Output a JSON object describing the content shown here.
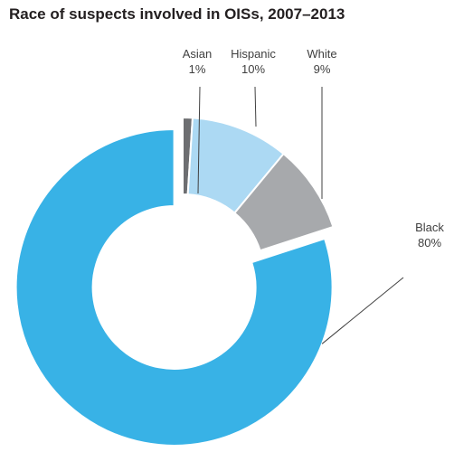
{
  "chart_data": {
    "type": "pie",
    "title": "Race of suspects involved in OISs, 2007–2013",
    "legend": "none",
    "slices": [
      {
        "label": "Asian",
        "value": 1,
        "display": "1%",
        "color": "#6d6e71"
      },
      {
        "label": "Hispanic",
        "value": 10,
        "display": "10%",
        "color": "#acd9f3"
      },
      {
        "label": "White",
        "value": 9,
        "display": "9%",
        "color": "#a7a9ac"
      },
      {
        "label": "Black",
        "value": 80,
        "display": "80%",
        "color": "#38b2e6",
        "exploded": true
      }
    ]
  }
}
